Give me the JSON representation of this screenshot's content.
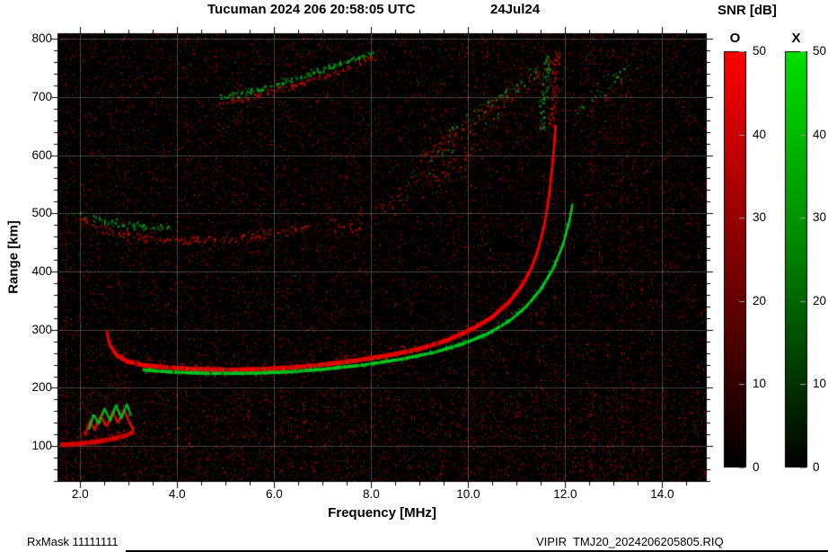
{
  "chart_data": {
    "type": "heatmap",
    "title": "Tucuman 2024 206 20:58:05 UTC",
    "date_label": "24Jul24",
    "xlabel": "Frequency [MHz]",
    "ylabel": "Range [km]",
    "xlim": [
      1.55,
      14.9
    ],
    "ylim": [
      40,
      808
    ],
    "xticks": [
      2,
      4,
      6,
      8,
      10,
      12,
      14
    ],
    "yticks": [
      100,
      200,
      300,
      400,
      500,
      600,
      700,
      800
    ],
    "grid": true,
    "background_color": "#000000",
    "colorbar": {
      "title": "SNR [dB]",
      "o_label": "O",
      "x_label": "X",
      "max": 50,
      "ticks": [
        0,
        10,
        20,
        30,
        40,
        50
      ],
      "o_color": "#ff0000",
      "x_color": "#00dd00",
      "o_stops": [
        "#000000",
        "#8b0000",
        "#ff0000"
      ],
      "x_stops": [
        "#000000",
        "#008b00",
        "#00e000"
      ]
    },
    "noise": {
      "base": 0.05,
      "col_var": 0.12,
      "green_frac": 0.1
    },
    "rfi_lines": [
      {
        "f": 1.75,
        "color": "#cc2200",
        "alpha": 0.16,
        "w": 16
      },
      {
        "f": 5.25,
        "color": "#aa1100",
        "alpha": 0.1,
        "w": 3
      },
      {
        "f": 7.0,
        "color": "#991100",
        "alpha": 0.08,
        "w": 2
      },
      {
        "f": 9.15,
        "color": "#aa1100",
        "alpha": 0.1,
        "w": 2
      },
      {
        "f": 10.75,
        "color": "#bb1100",
        "alpha": 0.12,
        "w": 3
      },
      {
        "f": 12.55,
        "color": "#991100",
        "alpha": 0.1,
        "w": 2
      },
      {
        "f": 13.15,
        "color": "#cc1100",
        "alpha": 0.22,
        "w": 3
      },
      {
        "f": 13.35,
        "color": "#aa1100",
        "alpha": 0.14,
        "w": 2
      },
      {
        "f": 14.35,
        "color": "#118811",
        "alpha": 0.1,
        "w": 2
      }
    ],
    "traces": [
      {
        "name": "F-trace O-mode",
        "mode": "O",
        "style": "solid",
        "color": "#ee0000",
        "width": 5,
        "points": [
          [
            2.55,
            295
          ],
          [
            2.62,
            272
          ],
          [
            2.75,
            256
          ],
          [
            2.95,
            246
          ],
          [
            3.3,
            239
          ],
          [
            3.8,
            235
          ],
          [
            4.4,
            232
          ],
          [
            5.2,
            231
          ],
          [
            6.0,
            233
          ],
          [
            6.8,
            238
          ],
          [
            7.6,
            246
          ],
          [
            8.3,
            255
          ],
          [
            9.0,
            267
          ],
          [
            9.6,
            283
          ],
          [
            10.1,
            302
          ],
          [
            10.5,
            322
          ],
          [
            10.85,
            348
          ],
          [
            11.1,
            375
          ],
          [
            11.3,
            405
          ],
          [
            11.45,
            440
          ],
          [
            11.57,
            480
          ],
          [
            11.66,
            525
          ],
          [
            11.72,
            570
          ],
          [
            11.77,
            615
          ],
          [
            11.8,
            650
          ]
        ]
      },
      {
        "name": "F-trace X-mode",
        "mode": "X",
        "style": "solid",
        "color": "#00cc22",
        "width": 3.5,
        "points": [
          [
            3.3,
            231
          ],
          [
            3.9,
            227
          ],
          [
            4.6,
            225
          ],
          [
            5.4,
            225
          ],
          [
            6.2,
            227
          ],
          [
            7.0,
            232
          ],
          [
            7.8,
            239
          ],
          [
            8.6,
            249
          ],
          [
            9.3,
            261
          ],
          [
            9.9,
            276
          ],
          [
            10.4,
            293
          ],
          [
            10.85,
            315
          ],
          [
            11.2,
            340
          ],
          [
            11.5,
            370
          ],
          [
            11.75,
            405
          ],
          [
            11.95,
            445
          ],
          [
            12.08,
            485
          ],
          [
            12.15,
            515
          ]
        ]
      },
      {
        "name": "E-region O-mode",
        "mode": "O",
        "style": "solid",
        "color": "#dd0000",
        "width": 5,
        "points": [
          [
            1.6,
            102
          ],
          [
            1.95,
            104
          ],
          [
            2.3,
            107
          ],
          [
            2.65,
            112
          ],
          [
            2.95,
            118
          ],
          [
            3.1,
            125
          ]
        ]
      },
      {
        "name": "E-spike red",
        "mode": "O",
        "style": "solid",
        "color": "#cc1100",
        "width": 3,
        "points": [
          [
            2.1,
            120
          ],
          [
            2.2,
            142
          ],
          [
            2.3,
            128
          ],
          [
            2.42,
            152
          ],
          [
            2.55,
            134
          ],
          [
            2.67,
            158
          ],
          [
            2.78,
            140
          ],
          [
            2.9,
            162
          ],
          [
            3.0,
            144
          ],
          [
            3.1,
            127
          ]
        ]
      },
      {
        "name": "E-spike green",
        "mode": "X",
        "style": "solid",
        "color": "#00bb22",
        "width": 2.5,
        "points": [
          [
            2.18,
            130
          ],
          [
            2.28,
            154
          ],
          [
            2.38,
            138
          ],
          [
            2.5,
            164
          ],
          [
            2.62,
            144
          ],
          [
            2.74,
            170
          ],
          [
            2.85,
            148
          ],
          [
            2.96,
            172
          ],
          [
            3.05,
            152
          ]
        ]
      },
      {
        "name": "Second-hop red arc",
        "mode": "O",
        "style": "diffuse",
        "color": "#cc1100",
        "density": 0.55,
        "jitter_km": 9,
        "points": [
          [
            2.0,
            492
          ],
          [
            2.5,
            474
          ],
          [
            3.0,
            464
          ],
          [
            3.6,
            457
          ],
          [
            4.2,
            454
          ],
          [
            4.9,
            456
          ],
          [
            5.5,
            461
          ],
          [
            6.1,
            469
          ],
          [
            6.7,
            479
          ]
        ]
      },
      {
        "name": "Second-hop green patch",
        "mode": "X",
        "style": "diffuse",
        "color": "#00aa22",
        "density": 0.5,
        "jitter_km": 8,
        "points": [
          [
            2.05,
            500
          ],
          [
            2.5,
            489
          ],
          [
            3.0,
            481
          ],
          [
            3.5,
            477
          ],
          [
            3.85,
            476
          ]
        ]
      },
      {
        "name": "Mid spread red",
        "mode": "O",
        "style": "diffuse",
        "color": "#bb1100",
        "density": 0.4,
        "jitter_km": 28,
        "points": [
          [
            7.2,
            470
          ],
          [
            7.7,
            490
          ],
          [
            8.2,
            512
          ],
          [
            8.7,
            536
          ],
          [
            9.2,
            562
          ],
          [
            9.7,
            590
          ],
          [
            10.2,
            618
          ],
          [
            10.6,
            642
          ]
        ]
      },
      {
        "name": "Mid spread green",
        "mode": "X",
        "style": "diffuse",
        "color": "#009911",
        "density": 0.15,
        "jitter_km": 22,
        "points": [
          [
            8.8,
            560
          ],
          [
            9.3,
            592
          ],
          [
            9.8,
            622
          ],
          [
            10.3,
            650
          ],
          [
            10.7,
            675
          ]
        ]
      },
      {
        "name": "Top arc red",
        "mode": "O",
        "style": "diffuse",
        "color": "#cc1100",
        "density": 0.55,
        "jitter_km": 7,
        "points": [
          [
            4.9,
            690
          ],
          [
            5.5,
            700
          ],
          [
            6.1,
            714
          ],
          [
            6.7,
            729
          ],
          [
            7.3,
            746
          ],
          [
            7.8,
            761
          ],
          [
            8.1,
            770
          ]
        ]
      },
      {
        "name": "Top arc green",
        "mode": "X",
        "style": "diffuse",
        "color": "#00bb22",
        "density": 0.65,
        "jitter_km": 6,
        "points": [
          [
            4.95,
            700
          ],
          [
            5.5,
            710
          ],
          [
            6.05,
            722
          ],
          [
            6.6,
            737
          ],
          [
            7.15,
            753
          ],
          [
            7.65,
            768
          ],
          [
            8.0,
            777
          ]
        ]
      },
      {
        "name": "Upper right spread red",
        "mode": "O",
        "style": "diffuse",
        "color": "#bb1100",
        "density": 0.5,
        "jitter_km": 18,
        "points": [
          [
            9.0,
            590
          ],
          [
            9.5,
            620
          ],
          [
            10.0,
            650
          ],
          [
            10.5,
            680
          ],
          [
            11.0,
            712
          ],
          [
            11.5,
            744
          ],
          [
            11.9,
            770
          ]
        ]
      },
      {
        "name": "Upper right spread green",
        "mode": "X",
        "style": "diffuse",
        "color": "#00aa22",
        "density": 0.28,
        "jitter_km": 14,
        "points": [
          [
            9.6,
            640
          ],
          [
            10.1,
            668
          ],
          [
            10.6,
            698
          ],
          [
            11.1,
            727
          ],
          [
            11.5,
            750
          ]
        ]
      },
      {
        "name": "Asymptote top red",
        "mode": "O",
        "style": "diffuse",
        "color": "#cc1100",
        "density": 0.5,
        "jitter_km": 6,
        "points": [
          [
            11.7,
            650
          ],
          [
            11.76,
            700
          ],
          [
            11.81,
            750
          ],
          [
            11.85,
            780
          ]
        ]
      },
      {
        "name": "Asymptote top green",
        "mode": "X",
        "style": "diffuse",
        "color": "#00bb22",
        "density": 0.5,
        "jitter_km": 5,
        "points": [
          [
            11.5,
            645
          ],
          [
            11.56,
            695
          ],
          [
            11.62,
            745
          ],
          [
            11.66,
            778
          ]
        ]
      },
      {
        "name": "Right edge specks green",
        "mode": "X",
        "style": "diffuse",
        "color": "#00aa22",
        "density": 0.3,
        "jitter_km": 20,
        "points": [
          [
            12.3,
            688
          ],
          [
            12.7,
            712
          ],
          [
            13.1,
            738
          ],
          [
            13.45,
            758
          ]
        ]
      },
      {
        "name": "Right edge specks red",
        "mode": "O",
        "style": "diffuse",
        "color": "#aa1100",
        "density": 0.25,
        "jitter_km": 22,
        "points": [
          [
            12.2,
            660
          ],
          [
            12.8,
            692
          ],
          [
            13.35,
            726
          ]
        ]
      }
    ]
  },
  "footer": {
    "left": "RxMask 11111111",
    "right": "VIPIR  TMJ20_2024206205805.RIQ"
  }
}
